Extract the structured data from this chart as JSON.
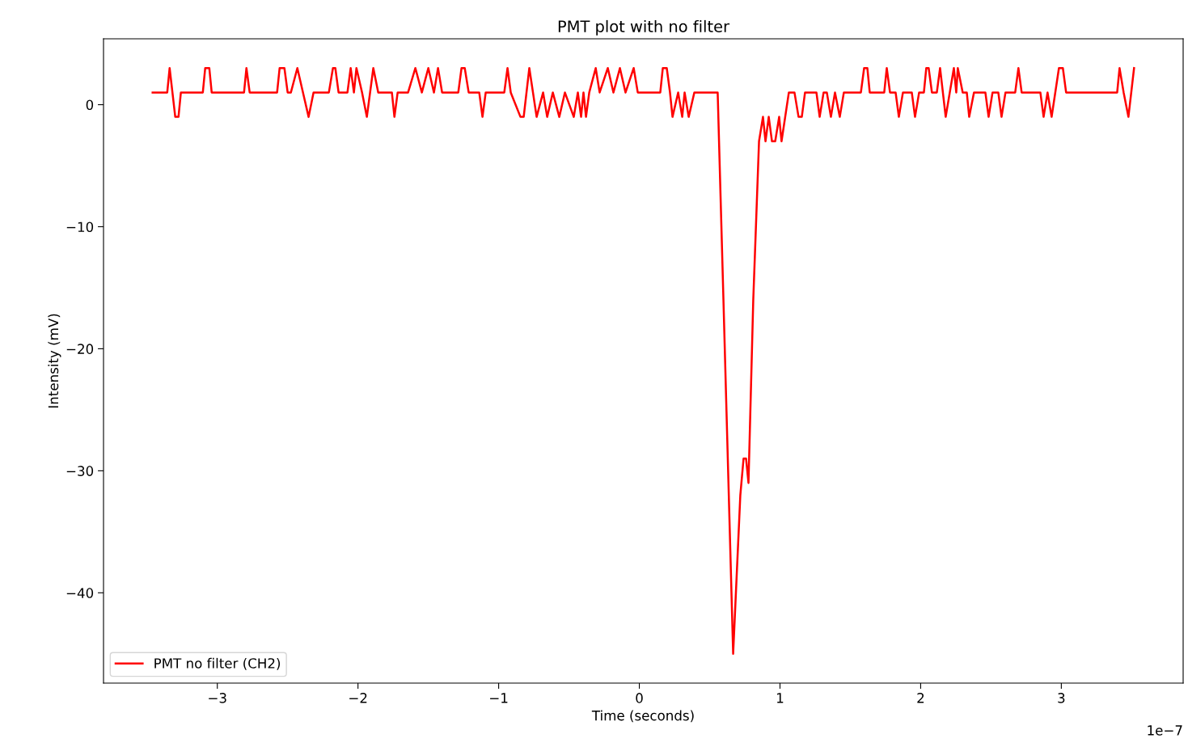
{
  "chart_data": {
    "type": "line",
    "title": "PMT plot with no filter",
    "xlabel": "Time (seconds)",
    "ylabel": "Intensity (mV)",
    "annotations": [
      "1e−7"
    ],
    "legend": "bottom left",
    "grid": false,
    "marker": "none",
    "line_style": "solid",
    "xlim": [
      -3.809,
      3.866
    ],
    "ylim": [
      -47.4,
      5.4
    ],
    "xticks": [
      {
        "value": -3,
        "label": "−3"
      },
      {
        "value": -2,
        "label": "−2"
      },
      {
        "value": -1,
        "label": "−1"
      },
      0,
      1,
      2,
      3
    ],
    "yticks": [
      {
        "value": -40,
        "label": "−40"
      },
      {
        "value": -30,
        "label": "−30"
      },
      {
        "value": -20,
        "label": "−20"
      },
      {
        "value": -10,
        "label": "−10"
      },
      0
    ],
    "series": [
      {
        "name": "PMT no filter (CH2)",
        "color": "#ff0000",
        "x": [
          -3.46,
          -3.356,
          -3.339,
          -3.299,
          -3.276,
          -3.259,
          -3.103,
          -3.086,
          -3.057,
          -3.04,
          -2.81,
          -2.793,
          -2.77,
          -2.575,
          -2.557,
          -2.523,
          -2.5,
          -2.477,
          -2.431,
          -2.391,
          -2.351,
          -2.316,
          -2.207,
          -2.178,
          -2.161,
          -2.138,
          -2.075,
          -2.052,
          -2.029,
          -2.011,
          -1.971,
          -1.937,
          -1.891,
          -1.856,
          -1.759,
          -1.741,
          -1.718,
          -1.644,
          -1.592,
          -1.546,
          -1.5,
          -1.46,
          -1.431,
          -1.402,
          -1.287,
          -1.264,
          -1.241,
          -1.213,
          -1.138,
          -1.115,
          -1.092,
          -0.96,
          -0.937,
          -0.914,
          -0.845,
          -0.822,
          -0.782,
          -0.73,
          -0.684,
          -0.655,
          -0.615,
          -0.569,
          -0.529,
          -0.466,
          -0.437,
          -0.414,
          -0.397,
          -0.379,
          -0.356,
          -0.31,
          -0.282,
          -0.224,
          -0.184,
          -0.138,
          -0.098,
          -0.04,
          -0.011,
          0.149,
          0.167,
          0.195,
          0.218,
          0.236,
          0.276,
          0.305,
          0.322,
          0.351,
          0.391,
          0.557,
          0.598,
          0.667,
          0.718,
          0.741,
          0.759,
          0.776,
          0.81,
          0.851,
          0.879,
          0.897,
          0.92,
          0.943,
          0.966,
          0.994,
          1.011,
          1.063,
          1.103,
          1.132,
          1.155,
          1.178,
          1.259,
          1.282,
          1.31,
          1.333,
          1.362,
          1.391,
          1.425,
          1.454,
          1.575,
          1.598,
          1.621,
          1.638,
          1.741,
          1.759,
          1.782,
          1.822,
          1.845,
          1.874,
          1.937,
          1.96,
          1.989,
          2.023,
          2.04,
          2.057,
          2.08,
          2.115,
          2.138,
          2.178,
          2.236,
          2.253,
          2.264,
          2.299,
          2.328,
          2.345,
          2.379,
          2.46,
          2.483,
          2.511,
          2.552,
          2.575,
          2.603,
          2.672,
          2.695,
          2.718,
          2.851,
          2.874,
          2.902,
          2.931,
          2.983,
          3.011,
          3.034,
          3.397,
          3.414,
          3.443,
          3.477,
          3.517
        ],
        "values": [
          1,
          1,
          3,
          -1,
          -1,
          1,
          1,
          3,
          3,
          1,
          1,
          3,
          1,
          1,
          3,
          3,
          1,
          1,
          3,
          1,
          -1,
          1,
          1,
          3,
          3,
          1,
          1,
          3,
          1,
          3,
          1,
          -1,
          3,
          1,
          1,
          -1,
          1,
          1,
          3,
          1,
          3,
          1,
          3,
          1,
          1,
          3,
          3,
          1,
          1,
          -1,
          1,
          1,
          3,
          1,
          -1,
          -1,
          3,
          -1,
          1,
          -1,
          1,
          -1,
          1,
          -1,
          1,
          -1,
          1,
          -1,
          1,
          3,
          1,
          3,
          1,
          3,
          1,
          3,
          1,
          1,
          3,
          3,
          1,
          -1,
          1,
          -1,
          1,
          -1,
          1,
          1,
          -16,
          -45,
          -32,
          -29,
          -29,
          -31,
          -16,
          -3,
          -1,
          -3,
          -1,
          -3,
          -3,
          -1,
          -3,
          1,
          1,
          -1,
          -1,
          1,
          1,
          -1,
          1,
          1,
          -1,
          1,
          -1,
          1,
          1,
          3,
          3,
          1,
          1,
          3,
          1,
          1,
          -1,
          1,
          1,
          -1,
          1,
          1,
          3,
          3,
          1,
          1,
          3,
          -1,
          3,
          1,
          3,
          1,
          1,
          -1,
          1,
          1,
          -1,
          1,
          1,
          -1,
          1,
          1,
          3,
          1,
          1,
          -1,
          1,
          -1,
          3,
          3,
          1,
          1,
          3,
          1,
          -1,
          3
        ]
      }
    ]
  }
}
